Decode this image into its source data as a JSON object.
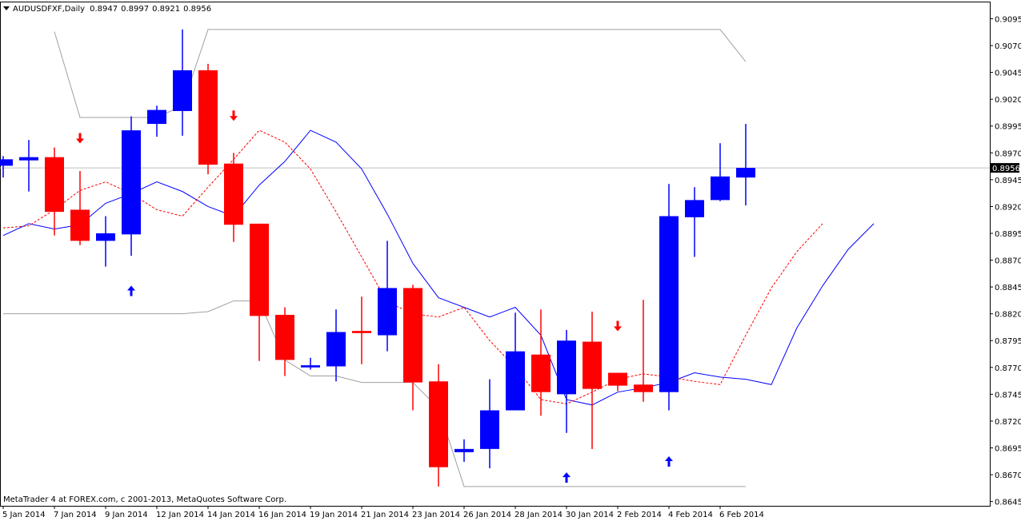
{
  "chart_data": {
    "type": "candlestick",
    "title": "AUDUSDFXF,Daily",
    "footer": "MetaTrader 4 at FOREX.com, c 2001-2013, MetaQuotes Software Corp.",
    "categories": [
      "5 Jan 2014",
      null,
      "7 Jan 2014",
      null,
      "9 Jan 2014",
      null,
      "12 Jan 2014",
      null,
      "14 Jan 2014",
      null,
      "16 Jan 2014",
      null,
      "19 Jan 2014",
      null,
      "21 Jan 2014",
      null,
      "23 Jan 2014",
      null,
      "26 Jan 2014",
      null,
      "28 Jan 2014",
      null,
      "30 Jan 2014",
      null,
      "2 Feb 2014",
      null,
      "4 Feb 2014",
      null,
      "6 Feb 2014",
      null,
      null,
      null,
      null,
      null,
      null
    ],
    "open": [
      0.8958,
      0.8963,
      0.8966,
      0.8917,
      0.8888,
      0.8894,
      0.8997,
      0.9009,
      0.9047,
      0.896,
      0.8904,
      0.8819,
      0.877,
      0.8771,
      0.8804,
      0.88,
      0.8844,
      0.8757,
      0.8691,
      0.8694,
      0.873,
      0.8782,
      0.8745,
      0.8794,
      0.8765,
      0.8754,
      0.8747,
      0.891,
      0.8926,
      0.8947,
      null,
      null,
      null,
      null,
      null
    ],
    "high": [
      0.8967,
      0.8982,
      0.8975,
      0.8953,
      0.8911,
      0.9004,
      0.9014,
      0.9085,
      0.9053,
      0.897,
      0.8904,
      0.8826,
      0.8779,
      0.8824,
      0.8836,
      0.8888,
      0.8847,
      0.8773,
      0.8703,
      0.8759,
      0.8821,
      0.8824,
      0.8805,
      0.8822,
      0.8765,
      0.8833,
      0.8941,
      0.8938,
      0.8979,
      0.8997,
      null,
      null,
      null,
      null,
      null
    ],
    "low": [
      0.8947,
      0.8934,
      0.8893,
      0.8884,
      0.8864,
      0.8874,
      0.8985,
      0.8986,
      0.895,
      0.8887,
      0.8776,
      0.8762,
      0.8768,
      0.8757,
      0.8773,
      0.8785,
      0.873,
      0.8659,
      0.8682,
      0.8676,
      0.873,
      0.8725,
      0.8709,
      0.8694,
      0.8748,
      0.8738,
      0.873,
      0.8873,
      0.8925,
      0.8921,
      null,
      null,
      null,
      null,
      null
    ],
    "close": [
      0.8964,
      0.8966,
      0.8915,
      0.8888,
      0.8895,
      0.8991,
      0.901,
      0.9047,
      0.8959,
      0.8903,
      0.8818,
      0.8777,
      0.8772,
      0.8803,
      0.8802,
      0.8844,
      0.8756,
      0.8677,
      0.8694,
      0.873,
      0.8785,
      0.8747,
      0.8795,
      0.875,
      0.8753,
      0.8747,
      0.8911,
      0.8926,
      0.8948,
      0.8956,
      null,
      null,
      null,
      null,
      null
    ],
    "up_color": "#0000ff",
    "down_color": "#ff0000",
    "lines": [
      {
        "color": "#a0a0a0",
        "dashed": false,
        "values": [
          null,
          null,
          0.9083,
          0.9003,
          0.9003,
          0.9003,
          0.9003,
          0.9014,
          0.9085,
          0.9085,
          0.9085,
          0.9085,
          0.9085,
          0.9085,
          0.9085,
          0.9085,
          0.9085,
          0.9085,
          0.9085,
          0.9085,
          0.9085,
          0.9085,
          0.9085,
          0.9085,
          0.9085,
          0.9085,
          0.9085,
          0.9085,
          0.9085,
          0.9055,
          null,
          null,
          null,
          null,
          null
        ]
      },
      {
        "color": "#a0a0a0",
        "dashed": false,
        "values": [
          0.882,
          0.882,
          0.882,
          0.882,
          0.882,
          0.882,
          0.882,
          0.882,
          0.8822,
          0.8832,
          0.8832,
          0.8777,
          0.8762,
          0.8762,
          0.8756,
          0.8756,
          0.8756,
          0.8732,
          0.8659,
          0.8659,
          0.8659,
          0.8659,
          0.8659,
          0.8659,
          0.8659,
          0.8659,
          0.8659,
          0.8659,
          0.8659,
          0.8659,
          null,
          null,
          null,
          null,
          null
        ]
      },
      {
        "color": "#0000ff",
        "dashed": false,
        "values": [
          0.8893,
          0.8904,
          0.8899,
          0.8903,
          0.8923,
          0.8932,
          0.8943,
          0.8934,
          0.892,
          0.8911,
          0.894,
          0.8962,
          0.8991,
          0.898,
          0.8955,
          0.8913,
          0.8867,
          0.8835,
          0.8826,
          0.8817,
          0.8826,
          0.88,
          0.874,
          0.8735,
          0.8747,
          0.8751,
          0.8756,
          0.8765,
          0.8761,
          0.8759,
          0.8754,
          0.8807,
          0.8846,
          0.888,
          0.8904
        ]
      },
      {
        "color": "#ff0000",
        "dashed": true,
        "values": [
          0.89,
          0.8902,
          0.8917,
          0.8935,
          0.8943,
          0.8932,
          0.8917,
          0.8911,
          0.8938,
          0.8964,
          0.8991,
          0.898,
          0.8955,
          0.8915,
          0.8873,
          0.8831,
          0.882,
          0.8817,
          0.8826,
          0.8795,
          0.877,
          0.874,
          0.8736,
          0.8747,
          0.8759,
          0.8764,
          0.8761,
          0.8757,
          0.8754,
          0.88,
          0.8844,
          0.8878,
          0.8904,
          null,
          null
        ]
      }
    ],
    "up_arrows": [
      null,
      null,
      null,
      null,
      null,
      0.8841,
      null,
      null,
      null,
      null,
      null,
      null,
      null,
      null,
      null,
      null,
      null,
      null,
      null,
      null,
      null,
      null,
      0.8667,
      null,
      null,
      null,
      0.8682,
      null,
      null,
      null,
      null,
      null,
      null,
      null,
      null
    ],
    "down_arrows": [
      null,
      null,
      null,
      0.8984,
      null,
      null,
      null,
      null,
      null,
      0.9005,
      null,
      null,
      null,
      null,
      null,
      null,
      null,
      null,
      null,
      null,
      null,
      null,
      null,
      null,
      0.8809,
      null,
      null,
      null,
      null,
      null,
      null,
      null,
      null,
      null,
      null
    ],
    "price_line": true,
    "ylim": [
      0.8641,
      0.9111
    ],
    "yticks": [
      0.9095,
      {
        "value": 0.907,
        "label": "0.9070"
      },
      0.9045,
      {
        "value": 0.902,
        "label": "0.9020"
      },
      0.8995,
      {
        "value": 0.897,
        "label": "0.8970"
      },
      0.8945,
      {
        "value": 0.892,
        "label": "0.8920"
      },
      0.8895,
      {
        "value": 0.887,
        "label": "0.8870"
      },
      0.8845,
      {
        "value": 0.882,
        "label": "0.8820"
      },
      0.8795,
      {
        "value": 0.877,
        "label": "0.8770"
      },
      0.8745,
      {
        "value": 0.872,
        "label": "0.8720"
      },
      0.8695,
      {
        "value": 0.867,
        "label": "0.8670"
      },
      0.8645
    ]
  }
}
